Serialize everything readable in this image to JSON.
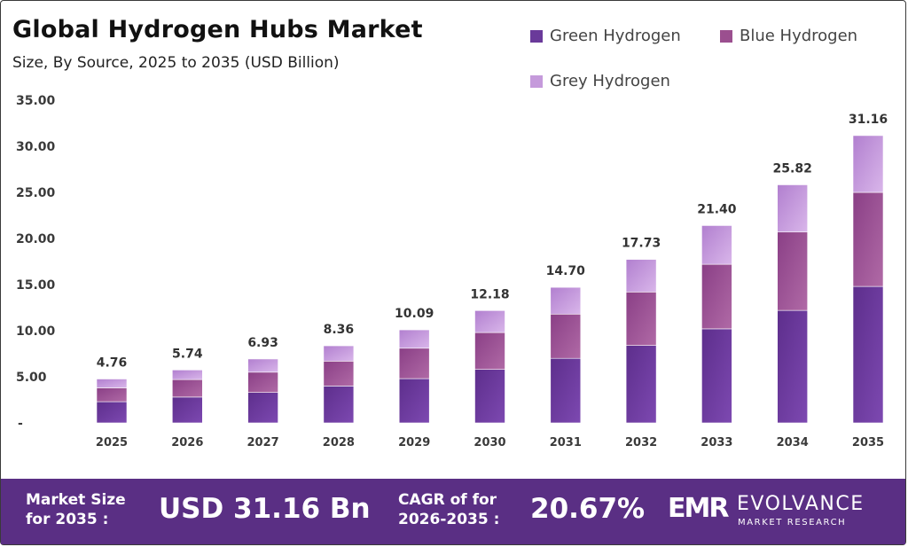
{
  "header": {
    "title": "Global Hydrogen Hubs Market",
    "subtitle": "Size, By Source, 2025 to 2035 (USD Billion)"
  },
  "colors": {
    "green_hydrogen": "#6a3a9a",
    "blue_hydrogen": "#9b4f8f",
    "grey_hydrogen": "#c59adb",
    "footer_bg": "#5a2f84"
  },
  "chart_data": {
    "type": "bar",
    "stacked": true,
    "categories": [
      "2025",
      "2026",
      "2027",
      "2028",
      "2029",
      "2030",
      "2031",
      "2032",
      "2033",
      "2034",
      "2035"
    ],
    "series": [
      {
        "name": "Green Hydrogen",
        "values": [
          2.3,
          2.8,
          3.3,
          4.0,
          4.8,
          5.8,
          7.0,
          8.4,
          10.2,
          12.2,
          14.8
        ]
      },
      {
        "name": "Blue Hydrogen",
        "values": [
          1.5,
          1.9,
          2.2,
          2.7,
          3.3,
          4.0,
          4.8,
          5.8,
          7.0,
          8.5,
          10.2
        ]
      },
      {
        "name": "Grey Hydrogen",
        "values": [
          0.96,
          1.04,
          1.43,
          1.66,
          1.99,
          2.38,
          2.9,
          3.53,
          4.2,
          5.12,
          6.16
        ]
      }
    ],
    "totals": [
      "4.76",
      "5.74",
      "6.93",
      "8.36",
      "10.09",
      "12.18",
      "14.70",
      "17.73",
      "21.40",
      "25.82",
      "31.16"
    ],
    "yticks": [
      "-",
      "5.00",
      "10.00",
      "15.00",
      "20.00",
      "25.00",
      "30.00",
      "35.00"
    ],
    "ylim": [
      0,
      35
    ],
    "grid": false,
    "legend_position": "top-right"
  },
  "footer": {
    "market_size_label_1": "Market Size",
    "market_size_label_2": "for 2035 :",
    "market_size_value": "USD 31.16 Bn",
    "cagr_label_1": "CAGR of for",
    "cagr_label_2": "2026-2035 :",
    "cagr_value": "20.67%",
    "logo_mark": "EMR",
    "logo_name": "EVOLVANCE",
    "logo_sub": "MARKET RESEARCH"
  }
}
